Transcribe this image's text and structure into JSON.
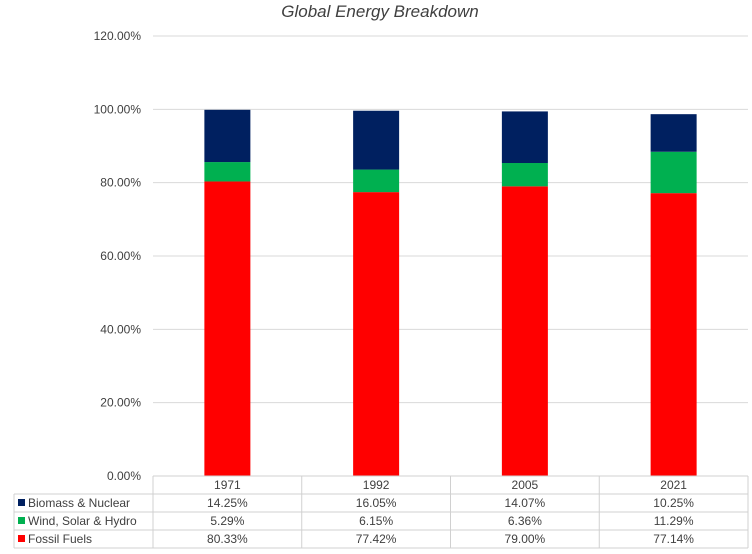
{
  "chart_data": {
    "type": "bar",
    "stacked": true,
    "title": "Global Energy Breakdown",
    "categories": [
      "1971",
      "1992",
      "2005",
      "2021"
    ],
    "ylim": [
      0,
      120
    ],
    "ytick_labels": [
      "0.00%",
      "20.00%",
      "40.00%",
      "60.00%",
      "80.00%",
      "100.00%",
      "120.00%"
    ],
    "grid": true,
    "series": [
      {
        "name": "Fossil Fuels",
        "color": "#ff0000",
        "values": [
          80.33,
          77.42,
          79.0,
          77.14
        ],
        "labels": [
          "80.33%",
          "77.42%",
          "79.00%",
          "77.14%"
        ]
      },
      {
        "name": "Wind, Solar & Hydro",
        "color": "#00b050",
        "values": [
          5.29,
          6.15,
          6.36,
          11.29
        ],
        "labels": [
          "5.29%",
          "6.15%",
          "6.36%",
          "11.29%"
        ]
      },
      {
        "name": "Biomass & Nuclear",
        "color": "#002060",
        "values": [
          14.25,
          16.05,
          14.07,
          10.25
        ],
        "labels": [
          "14.25%",
          "16.05%",
          "14.07%",
          "10.25%"
        ]
      }
    ],
    "data_table": true
  }
}
